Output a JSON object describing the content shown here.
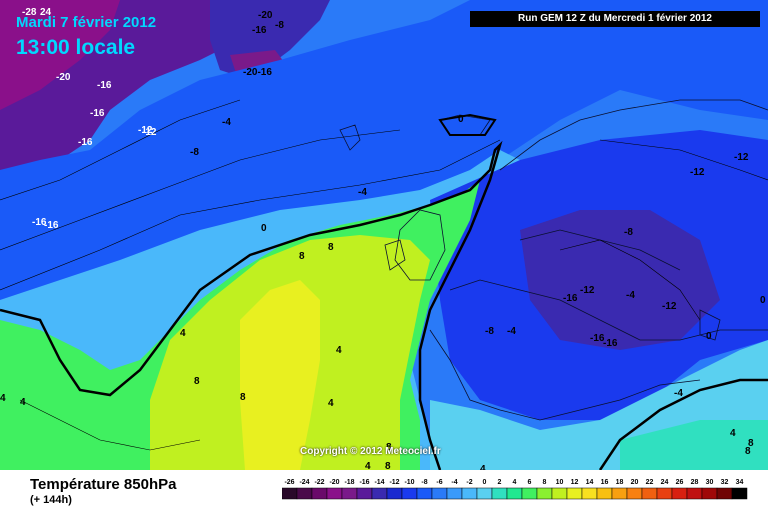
{
  "header": {
    "date": "Mardi 7 février 2012",
    "local_time": "13:00 locale",
    "run": "Run GEM 12 Z du Mercredi 1 février 2012"
  },
  "copyright": "Copyright © 2012 Meteociel.fr",
  "legend": {
    "title": "Température 850hPa",
    "subtitle": "(+ 144h)",
    "ticks": [
      "-26",
      "-24",
      "-22",
      "-20",
      "-18",
      "-16",
      "-14",
      "-12",
      "-10",
      "-8",
      "-6",
      "-4",
      "-2",
      "0",
      "2",
      "4",
      "6",
      "8",
      "10",
      "12",
      "14",
      "16",
      "18",
      "20",
      "22",
      "24",
      "26",
      "28",
      "30",
      "32",
      "34"
    ],
    "colors": [
      "#2a0a2a",
      "#4a0a4a",
      "#6a0a6a",
      "#8a108a",
      "#7a1a8a",
      "#5a1a9a",
      "#3a2ab0",
      "#1a2ad0",
      "#1a3aee",
      "#1a5af8",
      "#2a7af8",
      "#3a9afa",
      "#4ab8fa",
      "#5ad0f0",
      "#30e0c0",
      "#20e890",
      "#40f060",
      "#8af030",
      "#c0f020",
      "#e8f020",
      "#f8e020",
      "#f8c010",
      "#f8a010",
      "#f88010",
      "#f06010",
      "#e84010",
      "#d82010",
      "#c01010",
      "#a00808",
      "#700404",
      "#000000"
    ],
    "accent_colors": {
      "title_text": "#00d8ff"
    }
  },
  "map_labels": [
    {
      "text": "-28"
    },
    {
      "text": "24"
    },
    {
      "text": "-20"
    },
    {
      "text": "-8"
    },
    {
      "text": "-16"
    },
    {
      "text": "-20"
    },
    {
      "text": "-16"
    },
    {
      "text": "-20-16"
    },
    {
      "text": "-16"
    },
    {
      "text": "-16"
    },
    {
      "text": "-12"
    },
    {
      "text": "-12"
    },
    {
      "text": "-16"
    },
    {
      "text": "-4"
    },
    {
      "text": "-8"
    },
    {
      "text": "0"
    },
    {
      "text": "-12"
    },
    {
      "text": "-12"
    },
    {
      "text": "-4"
    },
    {
      "text": "-16"
    },
    {
      "text": "0"
    },
    {
      "text": "-8"
    },
    {
      "text": "8"
    },
    {
      "text": "8"
    },
    {
      "text": "-16"
    },
    {
      "text": "-12"
    },
    {
      "text": "-4"
    },
    {
      "text": "-12"
    },
    {
      "text": "-8"
    },
    {
      "text": "-4"
    },
    {
      "text": "-16"
    },
    {
      "text": "-16"
    },
    {
      "text": "0"
    },
    {
      "text": "4"
    },
    {
      "text": "4"
    },
    {
      "text": "4"
    },
    {
      "text": "8"
    },
    {
      "text": "8"
    },
    {
      "text": "4"
    },
    {
      "text": "8"
    },
    {
      "text": "4"
    },
    {
      "text": "8"
    },
    {
      "text": "-4"
    },
    {
      "text": "0"
    },
    {
      "text": "4"
    },
    {
      "text": "4"
    },
    {
      "text": "8"
    },
    {
      "text": "8"
    },
    {
      "text": "4"
    }
  ]
}
